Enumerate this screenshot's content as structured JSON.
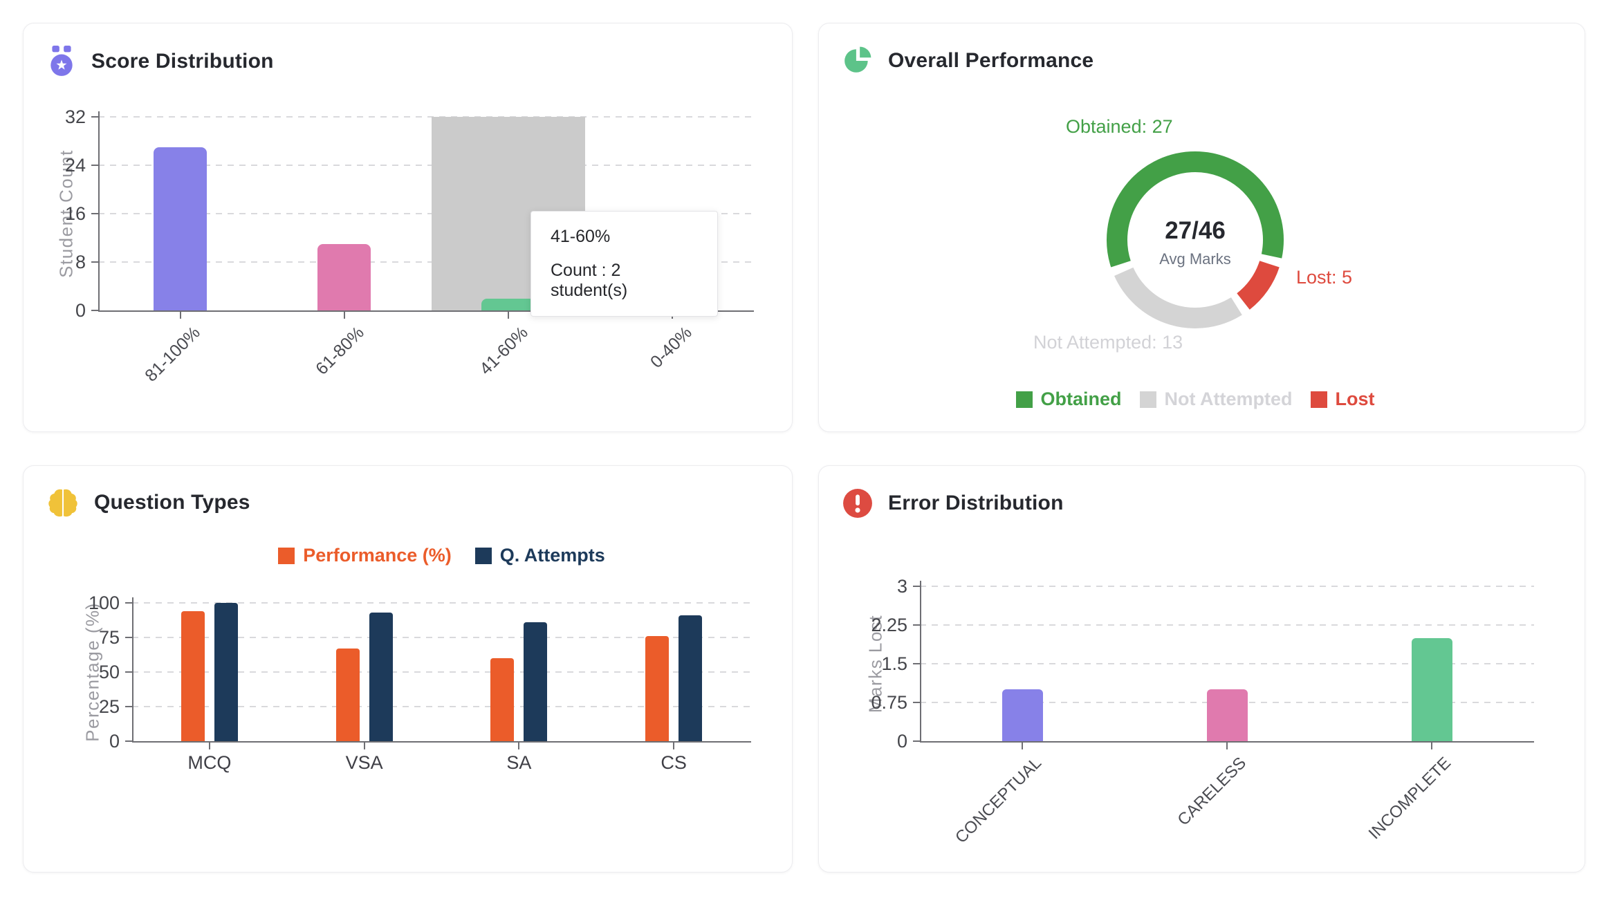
{
  "cards": [
    {
      "icon": "medal-icon",
      "icon_color": "#7e76ea"
    },
    {
      "icon": "pie-chart-icon",
      "icon_color": "#5dc389"
    },
    {
      "icon": "brain-icon",
      "icon_color": "#f0c239"
    },
    {
      "icon": "alert-icon",
      "icon_color": "#dd4b41"
    }
  ],
  "chart_data": [
    {
      "type": "bar",
      "title": "Score Distribution",
      "ylabel": "Student Count",
      "categories": [
        "81-100%",
        "61-80%",
        "41-60%",
        "0-40%"
      ],
      "values": [
        27,
        11,
        2,
        3
      ],
      "bar_colors": [
        "#8781e8",
        "#e07aae",
        "#63c792",
        "#ecba41"
      ],
      "y_ticks": [
        0,
        8,
        16,
        24,
        32
      ],
      "ylim": [
        0,
        32
      ],
      "grid": true,
      "highlight": {
        "category_index": 2,
        "color": "#cbcbcb"
      },
      "tooltip": {
        "title": "41-60%",
        "body": "Count : 2 student(s)"
      }
    },
    {
      "type": "donut",
      "title": "Overall Performance",
      "center_value": "27/46",
      "center_label": "Avg Marks",
      "segments": [
        {
          "name": "Obtained",
          "value": 27,
          "color": "#43a047",
          "callout": "Obtained: 27"
        },
        {
          "name": "Lost",
          "value": 5,
          "color": "#de4a3e",
          "callout": "Lost: 5"
        },
        {
          "name": "Not Attempted",
          "value": 13,
          "color": "#d4d4d4",
          "callout": "Not Attempted: 13"
        }
      ],
      "legend_order": [
        "Obtained",
        "Not Attempted",
        "Lost"
      ]
    },
    {
      "type": "bar",
      "title": "Question Types",
      "ylabel": "Percentage (%)",
      "categories": [
        "MCQ",
        "VSA",
        "SA",
        "CS"
      ],
      "series": [
        {
          "name": "Performance (%)",
          "color": "#eb5c2a",
          "values": [
            94,
            67,
            60,
            76
          ]
        },
        {
          "name": "Q. Attempts",
          "color": "#1d3a5a",
          "values": [
            100,
            93,
            86,
            91
          ]
        }
      ],
      "y_ticks": [
        0,
        25,
        50,
        75,
        100
      ],
      "ylim": [
        0,
        100
      ],
      "grid": true,
      "legend_position": "top"
    },
    {
      "type": "bar",
      "title": "Error Distribution",
      "ylabel": "Marks Lost",
      "categories": [
        "CONCEPTUAL",
        "CARELESS",
        "INCOMPLETE"
      ],
      "values": [
        1,
        1,
        2
      ],
      "bar_colors": [
        "#8781e8",
        "#e07aae",
        "#63c792"
      ],
      "y_ticks": [
        0,
        0.75,
        1.5,
        2.25,
        3
      ],
      "ylim": [
        0,
        3
      ],
      "grid": true
    }
  ]
}
